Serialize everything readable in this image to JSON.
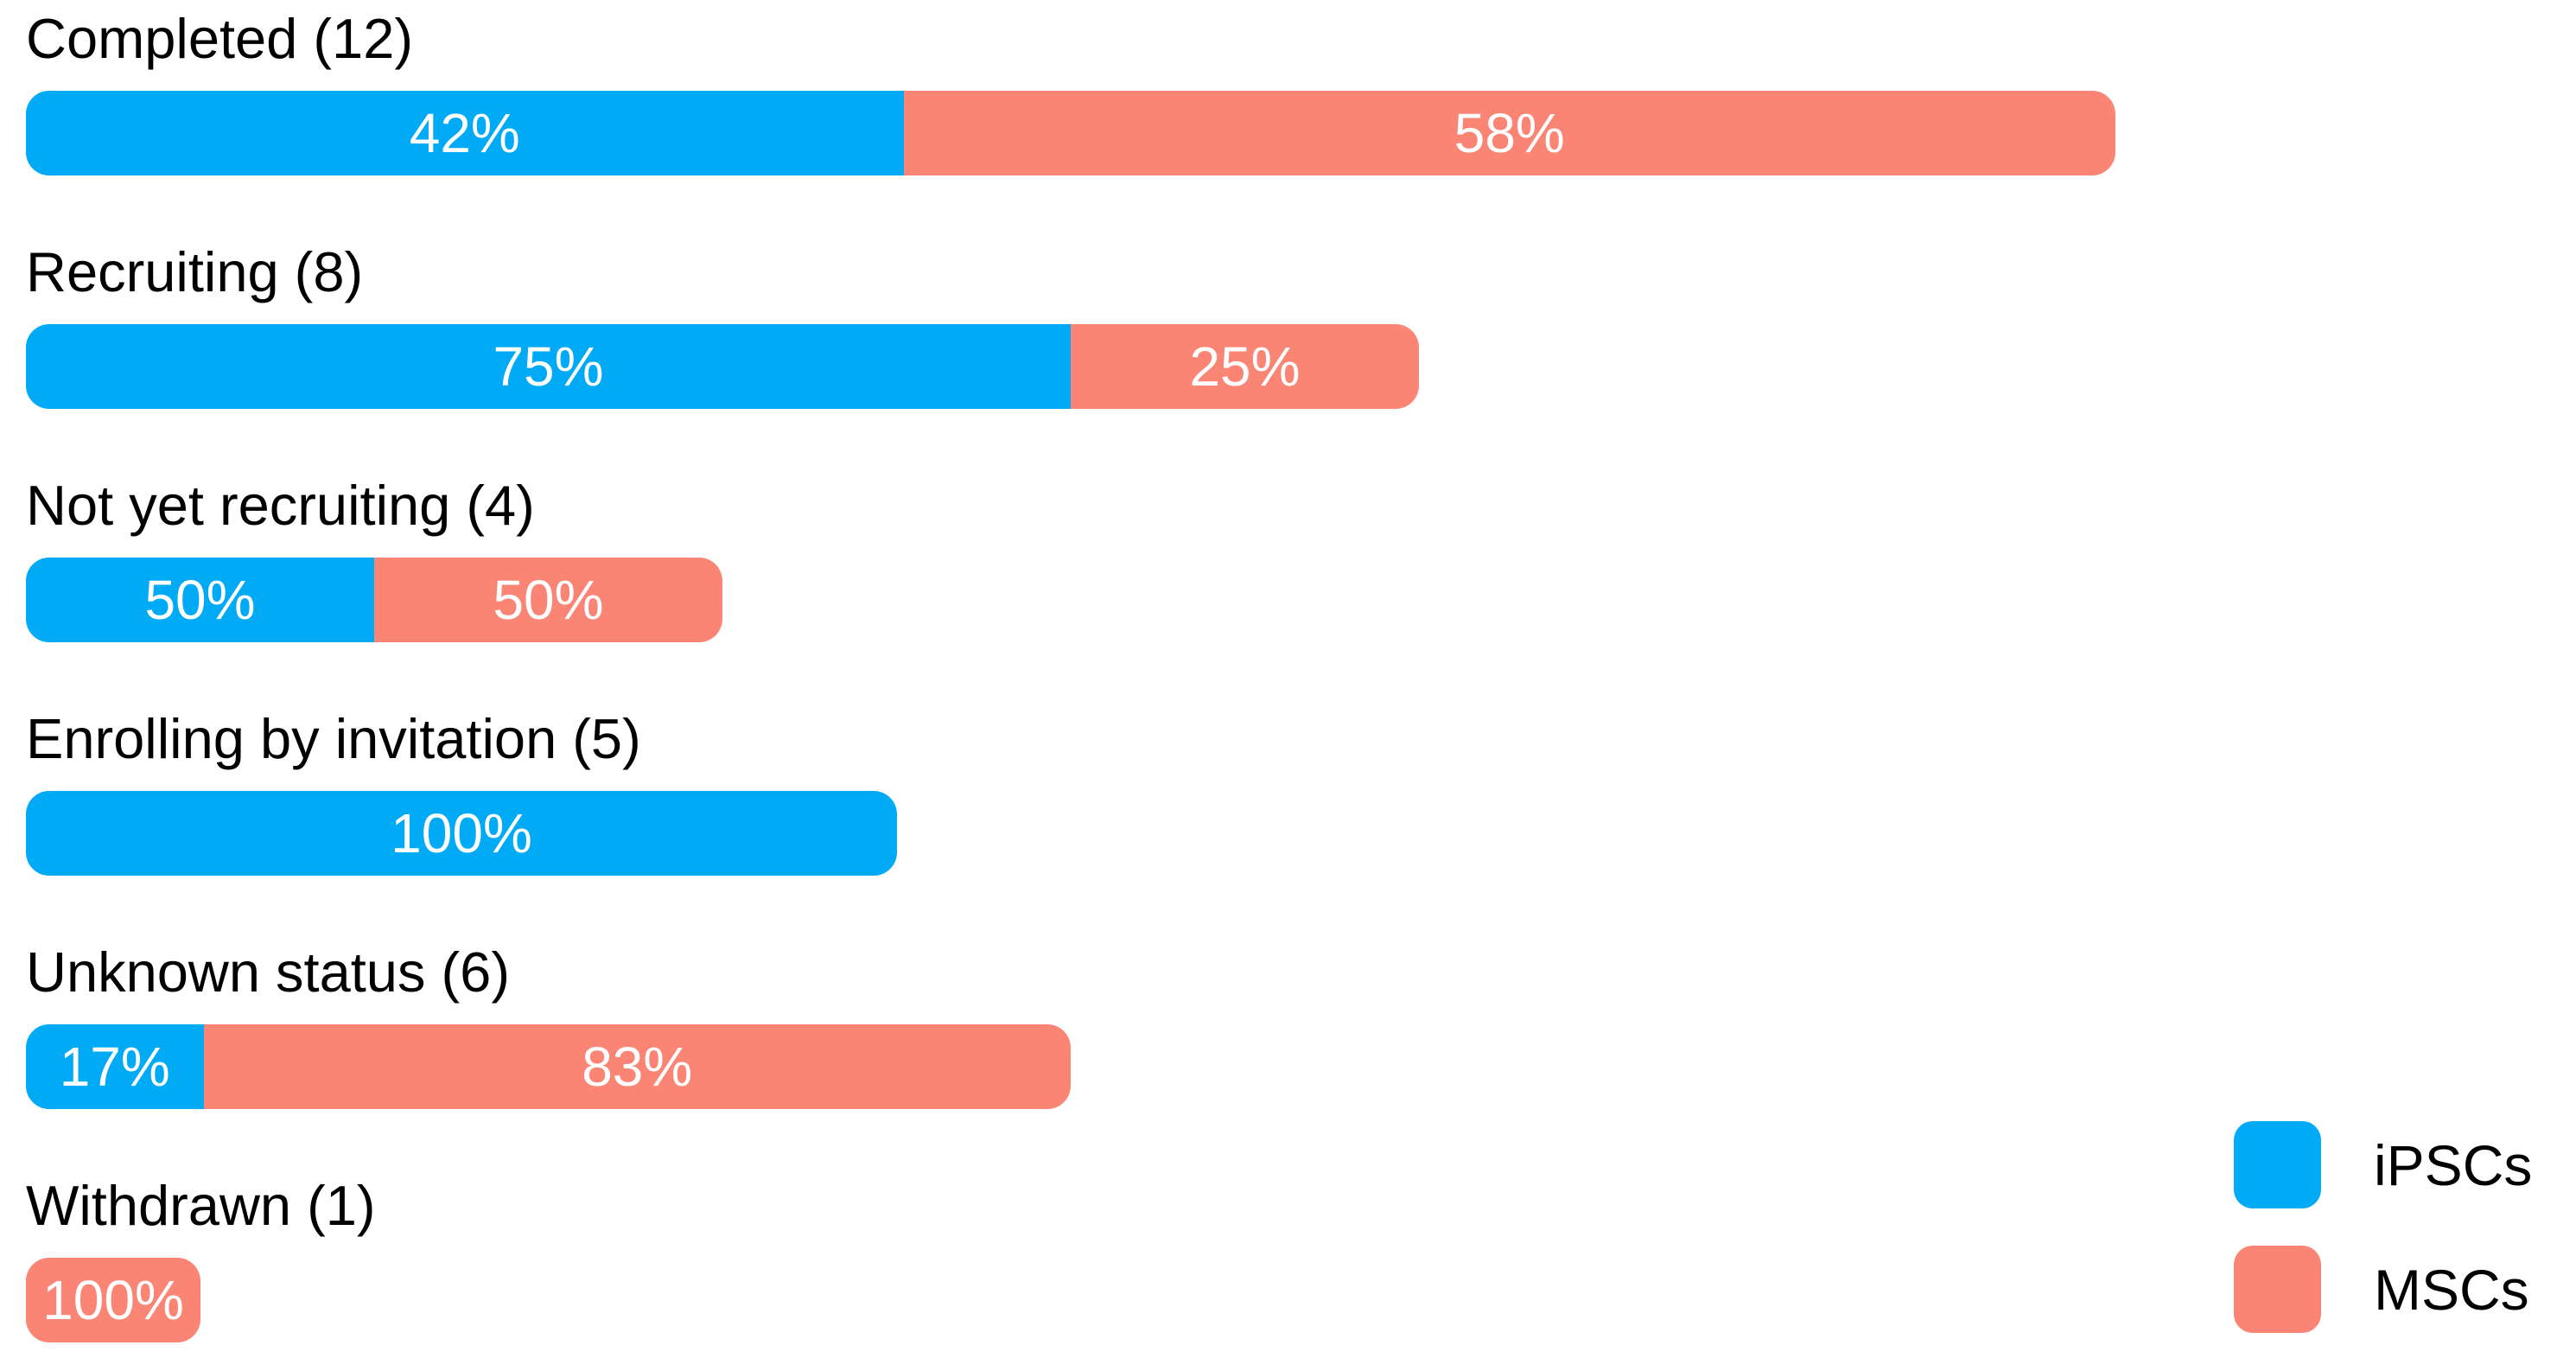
{
  "chart_data": {
    "type": "bar",
    "orientation": "horizontal",
    "stacked": true,
    "value_units": "percent",
    "title": "",
    "xlabel": "",
    "ylabel": "",
    "grid": false,
    "legend_position": "bottom-right",
    "bar_length_rule": "bar total length proportional to study count; 12 studies spans full width",
    "categories": [
      "Completed",
      "Recruiting",
      "Not yet recruiting",
      "Enrolling by invitation",
      "Unknown status",
      "Withdrawn"
    ],
    "counts": [
      12,
      8,
      4,
      5,
      6,
      1
    ],
    "series": [
      {
        "name": "iPSCs",
        "color": "#00AAF5",
        "percents": [
          42,
          75,
          50,
          100,
          17,
          0
        ]
      },
      {
        "name": "MSCs",
        "color": "#FA8575",
        "percents": [
          58,
          25,
          50,
          0,
          83,
          100
        ]
      }
    ],
    "rows": [
      {
        "display_label": "Completed (12)",
        "category": "Completed",
        "count": 12,
        "segments": [
          {
            "series": "iPSCs",
            "pct": 42,
            "label": "42%"
          },
          {
            "series": "MSCs",
            "pct": 58,
            "label": "58%"
          }
        ]
      },
      {
        "display_label": "Recruiting (8)",
        "category": "Recruiting",
        "count": 8,
        "segments": [
          {
            "series": "iPSCs",
            "pct": 75,
            "label": "75%"
          },
          {
            "series": "MSCs",
            "pct": 25,
            "label": "25%"
          }
        ]
      },
      {
        "display_label": "Not yet recruiting (4)",
        "category": "Not yet recruiting",
        "count": 4,
        "segments": [
          {
            "series": "iPSCs",
            "pct": 50,
            "label": "50%"
          },
          {
            "series": "MSCs",
            "pct": 50,
            "label": "50%"
          }
        ]
      },
      {
        "display_label": "Enrolling by invitation (5)",
        "category": "Enrolling by invitation",
        "count": 5,
        "segments": [
          {
            "series": "iPSCs",
            "pct": 100,
            "label": "100%"
          }
        ]
      },
      {
        "display_label": "Unknown status (6)",
        "category": "Unknown status",
        "count": 6,
        "segments": [
          {
            "series": "iPSCs",
            "pct": 17,
            "label": "17%"
          },
          {
            "series": "MSCs",
            "pct": 83,
            "label": "83%"
          }
        ]
      },
      {
        "display_label": "Withdrawn (1)",
        "category": "Withdrawn",
        "count": 1,
        "segments": [
          {
            "series": "MSCs",
            "pct": 100,
            "label": "100%"
          }
        ]
      }
    ],
    "legend": {
      "entries": [
        {
          "label": "iPSCs",
          "color": "#00AAF5"
        },
        {
          "label": "MSCs",
          "color": "#FA8575"
        }
      ]
    }
  },
  "colors": {
    "ipsc_blue": "#00AAF5",
    "msc_salmon": "#FA8575",
    "label_text": "#000000",
    "percent_text": "#FFFFFF",
    "background": "#FFFFFF"
  }
}
